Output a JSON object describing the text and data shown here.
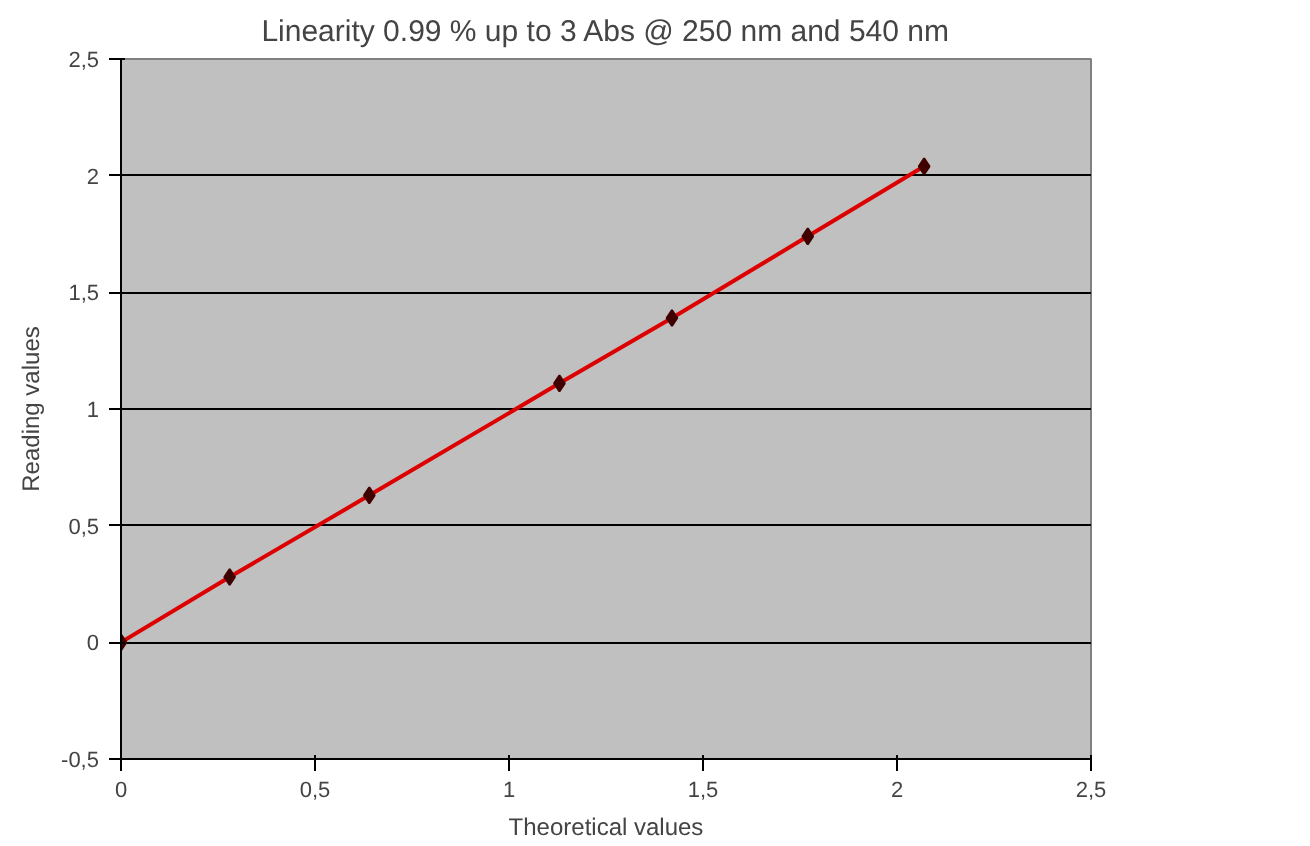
{
  "chart_data": {
    "type": "line",
    "title": "Linearity 0.99 % up to 3 Abs @ 250 nm and 540 nm",
    "xlabel": "Theoretical values",
    "ylabel": "Reading values",
    "x": [
      0,
      0.28,
      0.64,
      1.13,
      1.42,
      1.77,
      2.07
    ],
    "series": [
      {
        "color": "#dd0000",
        "values": [
          0,
          0.28,
          0.63,
          1.11,
          1.39,
          1.74,
          2.04
        ]
      }
    ],
    "marker": "diamond",
    "line_style": "solid",
    "grid": "y",
    "xlim": [
      0,
      2.5
    ],
    "ylim": [
      -0.5,
      2.5
    ],
    "xticks": [
      0,
      {
        "value": 0.5,
        "label": "0,5"
      },
      1,
      {
        "value": 1.5,
        "label": "1,5"
      },
      2,
      {
        "value": 2.5,
        "label": "2,5"
      }
    ],
    "yticks": [
      {
        "value": -0.5,
        "label": "-0,5"
      },
      0,
      {
        "value": 0.5,
        "label": "0,5"
      },
      1,
      {
        "value": 1.5,
        "label": "1,5"
      },
      2,
      {
        "value": 2.5,
        "label": "2,5"
      }
    ]
  }
}
